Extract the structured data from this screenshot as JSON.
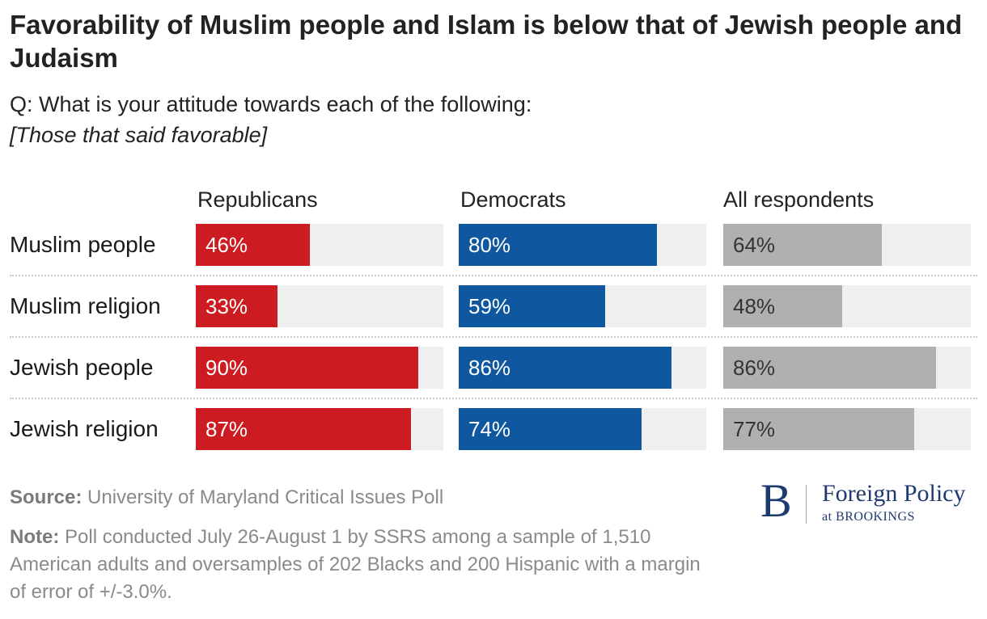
{
  "title": "Favorability of Muslim people and Islam is below that of Jewish people and Judaism",
  "subtitle": "Q: What is your attitude towards each of the following:",
  "subnote": "[Those that said favorable]",
  "colors": {
    "republicans": "#cc1c21",
    "democrats": "#0f58a0",
    "all": "#b0b0b0",
    "track": "#efefef"
  },
  "chart_data": {
    "type": "bar",
    "orientation": "horizontal",
    "layout": "small-multiples",
    "categories": [
      "Muslim people",
      "Muslim religion",
      "Jewish people",
      "Jewish religion"
    ],
    "series": [
      {
        "name": "Republicans",
        "values": [
          46,
          33,
          90,
          87
        ],
        "labels": [
          "46%",
          "33%",
          "90%",
          "87%"
        ]
      },
      {
        "name": "Democrats",
        "values": [
          80,
          59,
          86,
          74
        ],
        "labels": [
          "80%",
          "59%",
          "86%",
          "74%"
        ]
      },
      {
        "name": "All respondents",
        "values": [
          64,
          48,
          86,
          77
        ],
        "labels": [
          "64%",
          "48%",
          "86%",
          "77%"
        ]
      }
    ],
    "xlim": [
      0,
      100
    ],
    "unit": "%"
  },
  "source": {
    "label": "Source:",
    "text": "University of Maryland Critical Issues Poll"
  },
  "note": {
    "label": "Note:",
    "text": "Poll conducted July 26-August 1 by SSRS among a sample of 1,510 American adults and oversamples of 202 Blacks and 200 Hispanic with a margin of error of +/-3.0%."
  },
  "logo": {
    "mark": "B",
    "name": "Foreign Policy",
    "sub": "at BROOKINGS"
  }
}
